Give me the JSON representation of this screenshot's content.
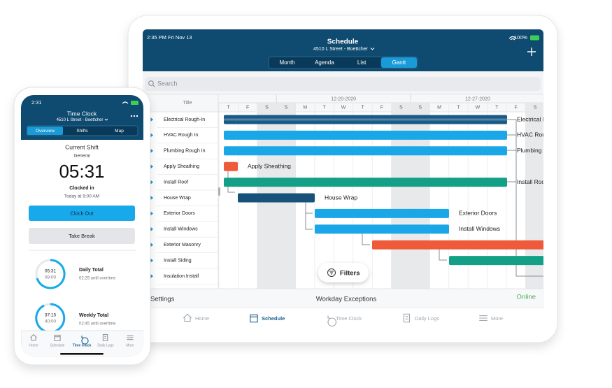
{
  "tablet": {
    "status_left": "2:35 PM  Fri Nov 13",
    "battery": "100%",
    "title": "Schedule",
    "subtitle": "4510 L Street - Boettcher",
    "view_tabs": [
      "Month",
      "Agenda",
      "List",
      "Gantt"
    ],
    "search": "Search",
    "gantt": {
      "title_column": "Title",
      "weeks": [
        "12-20-2020",
        "12-27-2020"
      ],
      "days": [
        "T",
        "F",
        "S",
        "S",
        "M",
        "T",
        "W",
        "T",
        "F",
        "S",
        "S",
        "M",
        "T",
        "W",
        "T",
        "F",
        "S"
      ],
      "tasks": [
        "Electrical Rough-In",
        "HVAC Rough In",
        "Plumbing Rough In",
        "Apply Sheathing",
        "Install Roof",
        "House Wrap",
        "Exterior Doors",
        "Install Windows",
        "Exterior Masonry",
        "Install Siding",
        "Insulation Install"
      ]
    },
    "filters": "Filters",
    "footer": {
      "settings": "Settings",
      "exceptions": "Workday Exceptions",
      "status": "Online"
    },
    "tabs": [
      "Home",
      "Schedule",
      "Time Clock",
      "Daily Logs",
      "More"
    ]
  },
  "phone": {
    "status_time": "2:31",
    "title": "Time Clock",
    "subtitle": "4510 L Street - Boettcher",
    "segments": [
      "Overview",
      "Shifts",
      "Map"
    ],
    "shift_heading": "Current Shift",
    "shift_type": "General",
    "elapsed": "05:31",
    "state": "Clocked in",
    "since": "Today at 9:00 AM",
    "clock_out": "Clock Out",
    "take_break": "Take Break",
    "daily": {
      "current": "05:31",
      "limit": "08:00",
      "label": "Daily Total",
      "note": "02:29 until overtime"
    },
    "weekly": {
      "current": "37:15",
      "limit": "40:00",
      "label": "Weekly Total",
      "note": "02:45 until overtime"
    },
    "tabs": [
      "Home",
      "Schedule",
      "Time Clock",
      "Daily Logs",
      "More"
    ]
  }
}
